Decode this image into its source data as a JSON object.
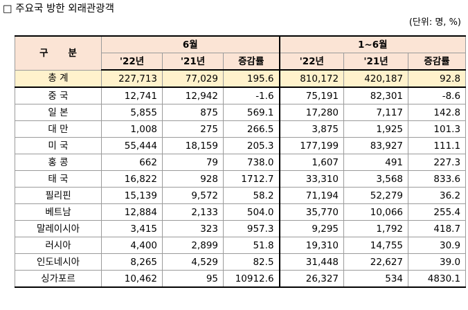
{
  "title": "□ 주요국 방한 외래관광객",
  "unit_note": "(단위: 명, %)",
  "table": {
    "row_header": "구 분",
    "group_headers": [
      "6월",
      "1~6월"
    ],
    "sub_headers": [
      "'22년",
      "'21년",
      "증감률",
      "'22년",
      "'21년",
      "증감률"
    ],
    "rows": [
      {
        "country": "총 계",
        "v": [
          "227,713",
          "77,029",
          "195.6",
          "810,172",
          "420,187",
          "92.8"
        ]
      },
      {
        "country": "중 국",
        "v": [
          "12,741",
          "12,942",
          "-1.6",
          "75,191",
          "82,301",
          "-8.6"
        ]
      },
      {
        "country": "일 본",
        "v": [
          "5,855",
          "875",
          "569.1",
          "17,280",
          "7,117",
          "142.8"
        ]
      },
      {
        "country": "대 만",
        "v": [
          "1,008",
          "275",
          "266.5",
          "3,875",
          "1,925",
          "101.3"
        ]
      },
      {
        "country": "미 국",
        "v": [
          "55,444",
          "18,159",
          "205.3",
          "177,199",
          "83,927",
          "111.1"
        ]
      },
      {
        "country": "홍 콩",
        "v": [
          "662",
          "79",
          "738.0",
          "1,607",
          "491",
          "227.3"
        ]
      },
      {
        "country": "태 국",
        "v": [
          "16,822",
          "928",
          "1712.7",
          "33,310",
          "3,568",
          "833.6"
        ]
      },
      {
        "country": "필리핀",
        "v": [
          "15,139",
          "9,572",
          "58.2",
          "71,194",
          "52,279",
          "36.2"
        ]
      },
      {
        "country": "베트남",
        "v": [
          "12,884",
          "2,133",
          "504.0",
          "35,770",
          "10,066",
          "255.4"
        ]
      },
      {
        "country": "말레이시아",
        "v": [
          "3,415",
          "323",
          "957.3",
          "9,295",
          "1,792",
          "418.7"
        ]
      },
      {
        "country": "러시아",
        "v": [
          "4,400",
          "2,899",
          "51.8",
          "19,310",
          "14,755",
          "30.9"
        ]
      },
      {
        "country": "인도네시아",
        "v": [
          "8,265",
          "4,529",
          "82.5",
          "31,448",
          "22,627",
          "39.0"
        ]
      },
      {
        "country": "싱가포르",
        "v": [
          "10,462",
          "95",
          "10912.6",
          "26,327",
          "534",
          "4830.1"
        ]
      }
    ]
  },
  "colors": {
    "header_bg": "#fbe4d5",
    "total_row_bg": "#fff2cc",
    "grid_line": "#9a9a9a",
    "rule_line": "#000000"
  }
}
